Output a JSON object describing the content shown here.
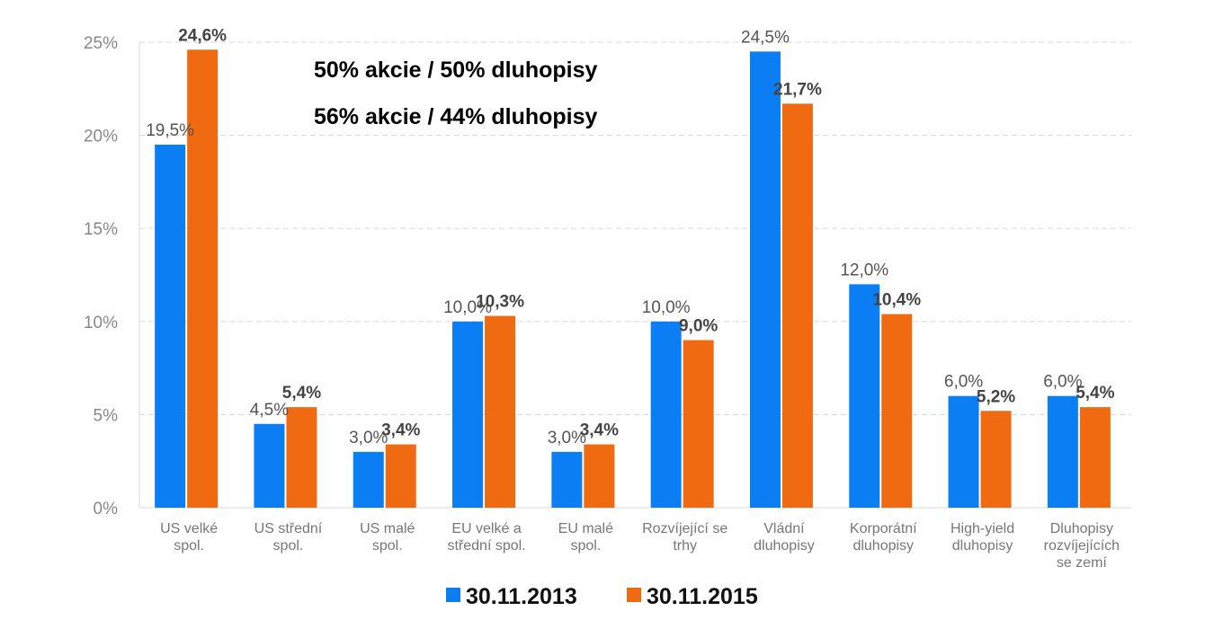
{
  "chart_data": {
    "type": "bar",
    "title": "",
    "xlabel": "",
    "ylabel": "",
    "ylim": [
      0,
      25
    ],
    "yticks": [
      "0%",
      "5%",
      "10%",
      "15%",
      "20%",
      "25%"
    ],
    "grid": true,
    "categories": [
      [
        "US velké",
        "spol."
      ],
      [
        "US střední",
        "spol."
      ],
      [
        "US malé",
        "spol."
      ],
      [
        "EU velké a",
        "střední spol."
      ],
      [
        "EU malé",
        "spol."
      ],
      [
        "Rozvíjející se",
        "trhy"
      ],
      [
        "Vládní",
        "dluhopisy"
      ],
      [
        "Korporátní",
        "dluhopisy"
      ],
      [
        "High-yield",
        "dluhopisy"
      ],
      [
        "Dluhopisy",
        "rozvíjejících",
        "se zemí"
      ]
    ],
    "series": [
      {
        "name": "30.11.2013",
        "color": "#0A7EF2",
        "values": [
          19.5,
          4.5,
          3.0,
          10.0,
          3.0,
          10.0,
          24.5,
          12.0,
          6.0,
          6.0
        ],
        "labels": [
          "19,5%",
          "4,5%",
          "3,0%",
          "10,0%",
          "3,0%",
          "10,0%",
          "24,5%",
          "12,0%",
          "6,0%",
          "6,0%"
        ]
      },
      {
        "name": "30.11.2015",
        "color": "#F06A12",
        "values": [
          24.6,
          5.4,
          3.4,
          10.3,
          3.4,
          9.0,
          21.7,
          10.4,
          5.2,
          5.4
        ],
        "labels": [
          "24,6%",
          "5,4%",
          "3,4%",
          "10,3%",
          "3,4%",
          "9,0%",
          "21,7%",
          "10,4%",
          "5,2%",
          "5,4%"
        ]
      }
    ],
    "annotations": [
      {
        "text": "50% akcie / 50% dluhopisy",
        "color": "#0A7EF2"
      },
      {
        "text": "56% akcie / 44% dluhopisy",
        "color": "#F06A12"
      }
    ],
    "legend": {
      "placement": "bottom-center"
    }
  }
}
